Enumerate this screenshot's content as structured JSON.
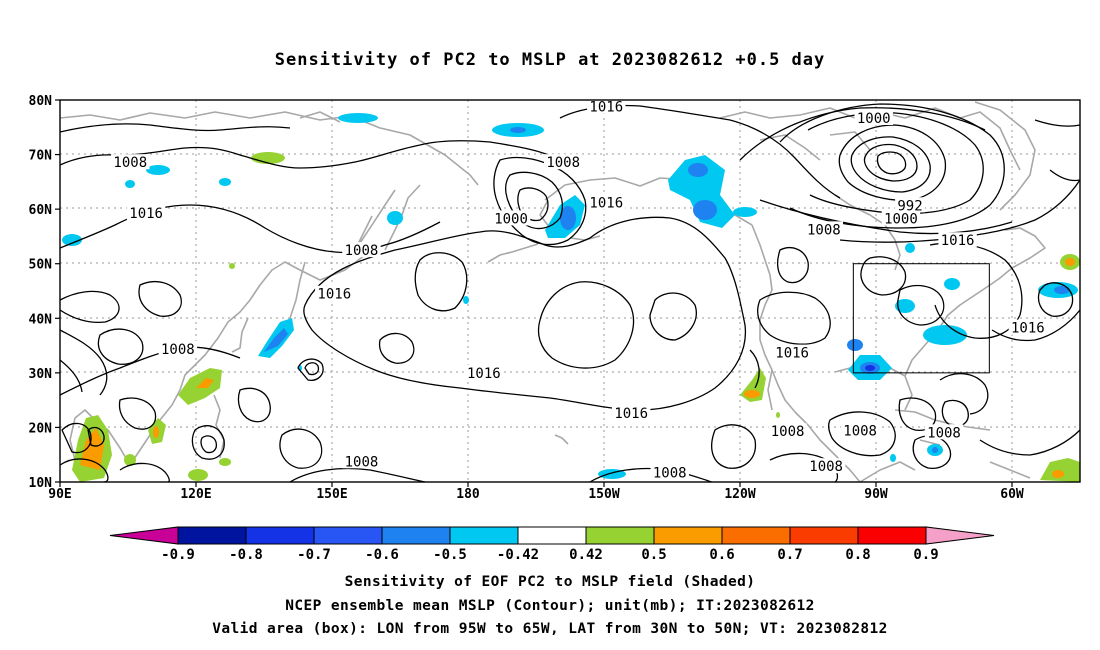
{
  "title": "Sensitivity of PC2 to MSLP at 2023082612 +0.5 day",
  "lat_labels": [
    {
      "text": "80N",
      "lat": 80
    },
    {
      "text": "70N",
      "lat": 70
    },
    {
      "text": "60N",
      "lat": 60
    },
    {
      "text": "50N",
      "lat": 50
    },
    {
      "text": "40N",
      "lat": 40
    },
    {
      "text": "30N",
      "lat": 30
    },
    {
      "text": "20N",
      "lat": 20
    },
    {
      "text": "10N",
      "lat": 10
    }
  ],
  "lon_labels": [
    {
      "text": "90E",
      "lon": 90
    },
    {
      "text": "120E",
      "lon": 120
    },
    {
      "text": "150E",
      "lon": 150
    },
    {
      "text": "180",
      "lon": 180
    },
    {
      "text": "150W",
      "lon": 210
    },
    {
      "text": "120W",
      "lon": 240
    },
    {
      "text": "90W",
      "lon": 270
    },
    {
      "text": "60W",
      "lon": 300
    }
  ],
  "extent": {
    "lon_min": 90,
    "lon_max": 315,
    "lat_min": 10,
    "lat_max": 80
  },
  "valid_box": {
    "lon_min": 265,
    "lon_max": 295,
    "lat_min": 30,
    "lat_max": 50
  },
  "contour_labels": [
    {
      "text": "1016",
      "lon": 210.5,
      "lat": 78.8
    },
    {
      "text": "1000",
      "lon": 269.5,
      "lat": 76.7
    },
    {
      "text": "1008",
      "lon": 105.5,
      "lat": 68.6
    },
    {
      "text": "1008",
      "lon": 201,
      "lat": 68.6
    },
    {
      "text": "992",
      "lon": 277.5,
      "lat": 60.7
    },
    {
      "text": "1016",
      "lon": 109,
      "lat": 59.3
    },
    {
      "text": "1016",
      "lon": 210.5,
      "lat": 61.2
    },
    {
      "text": "1000",
      "lon": 189.5,
      "lat": 58.3
    },
    {
      "text": "1000",
      "lon": 275.5,
      "lat": 58.3
    },
    {
      "text": "1008",
      "lon": 258.5,
      "lat": 56.3
    },
    {
      "text": "1016",
      "lon": 288,
      "lat": 54.3
    },
    {
      "text": "1008",
      "lon": 156.5,
      "lat": 52.5
    },
    {
      "text": "1016",
      "lon": 150.5,
      "lat": 44.5
    },
    {
      "text": "1016",
      "lon": 303.5,
      "lat": 38.3
    },
    {
      "text": "1008",
      "lon": 116,
      "lat": 34.4
    },
    {
      "text": "1016",
      "lon": 251.5,
      "lat": 33.7
    },
    {
      "text": "1016",
      "lon": 183.5,
      "lat": 30.0
    },
    {
      "text": "1016",
      "lon": 216,
      "lat": 22.6
    },
    {
      "text": "1008",
      "lon": 250.5,
      "lat": 19.3
    },
    {
      "text": "1008",
      "lon": 266.5,
      "lat": 19.4
    },
    {
      "text": "1008",
      "lon": 285,
      "lat": 19.1
    },
    {
      "text": "1008",
      "lon": 156.5,
      "lat": 13.8
    },
    {
      "text": "1008",
      "lon": 224.5,
      "lat": 11.7
    },
    {
      "text": "1008",
      "lon": 259,
      "lat": 12.9
    }
  ],
  "colorbar": {
    "labels": [
      "-0.9",
      "-0.8",
      "-0.7",
      "-0.6",
      "-0.5",
      "-0.42",
      "0.42",
      "0.5",
      "0.6",
      "0.7",
      "0.8",
      "0.9"
    ],
    "colors": [
      "#c80098",
      "#0014a0",
      "#1432e6",
      "#2856f5",
      "#1e82f0",
      "#00c8f0",
      "#ffffff",
      "#96d232",
      "#fa9b00",
      "#fa6e00",
      "#fa3c00",
      "#fa0000",
      "#f5a0c8"
    ]
  },
  "captions": [
    "Sensitivity of EOF PC2 to MSLP field (Shaded)",
    "NCEP ensemble mean MSLP (Contour); unit(mb); IT:2023082612",
    "Valid area (box): LON from 95W to 65W, LAT from 30N to 50N; VT: 2023082812"
  ]
}
